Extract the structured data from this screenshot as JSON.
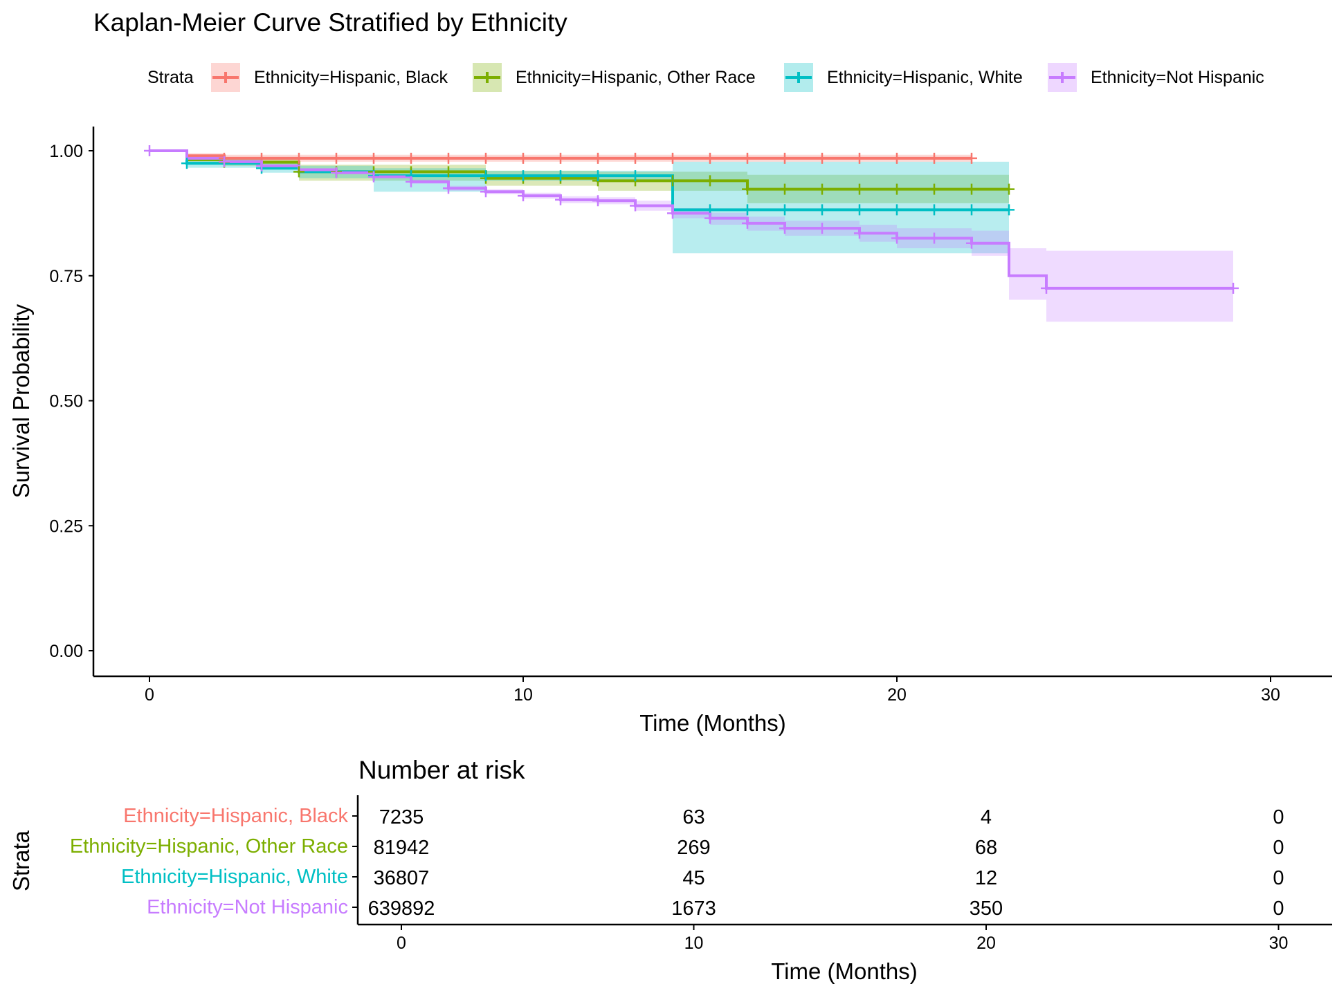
{
  "title": "Kaplan-Meier Curve Stratified by Ethnicity",
  "legend": {
    "title": "Strata",
    "position": "top",
    "items": [
      {
        "label": "Ethnicity=Hispanic, Black",
        "color": "#F8766D"
      },
      {
        "label": "Ethnicity=Hispanic, Other Race",
        "color": "#7CAE00"
      },
      {
        "label": "Ethnicity=Hispanic, White",
        "color": "#00BFC4"
      },
      {
        "label": "Ethnicity=Not Hispanic",
        "color": "#C77CFF"
      }
    ]
  },
  "risk_table": {
    "title": "Number at risk",
    "ylabel": "Strata",
    "xlabel": "Time (Months)",
    "times": [
      0,
      10,
      20,
      30
    ],
    "xticks": [
      "0",
      "10",
      "20",
      "30"
    ],
    "rows": [
      {
        "label": "Ethnicity=Hispanic, Black",
        "color": "#F8766D",
        "values": [
          "7235",
          "63",
          "4",
          "0"
        ]
      },
      {
        "label": "Ethnicity=Hispanic, Other Race",
        "color": "#7CAE00",
        "values": [
          "81942",
          "269",
          "68",
          "0"
        ]
      },
      {
        "label": "Ethnicity=Hispanic, White",
        "color": "#00BFC4",
        "values": [
          "36807",
          "45",
          "12",
          "0"
        ]
      },
      {
        "label": "Ethnicity=Not Hispanic",
        "color": "#C77CFF",
        "values": [
          "639892",
          "1673",
          "350",
          "0"
        ]
      }
    ]
  },
  "chart_data": {
    "type": "line",
    "subtype": "step",
    "title": "Kaplan-Meier Curve Stratified by Ethnicity",
    "xlabel": "Time (Months)",
    "ylabel": "Survival Probability",
    "xlim": [
      -1.5,
      31.5
    ],
    "ylim": [
      -0.05,
      1.05
    ],
    "xticks": [
      0,
      10,
      20,
      30
    ],
    "yticks": [
      0,
      0.25,
      0.5,
      0.75,
      1.0
    ],
    "ytick_labels": [
      "0.00",
      "0.25",
      "0.50",
      "0.75",
      "1.00"
    ],
    "grid": false,
    "legend_position": "top",
    "series": [
      {
        "name": "Ethnicity=Hispanic, Black",
        "color": "#F8766D",
        "steps": [
          [
            0,
            1.0
          ],
          [
            1,
            0.99
          ],
          [
            2,
            0.985
          ],
          [
            22,
            0.985
          ]
        ],
        "ci_lower": [
          [
            0,
            1.0
          ],
          [
            1,
            0.985
          ],
          [
            2,
            0.978
          ],
          [
            22,
            0.978
          ]
        ],
        "ci_upper": [
          [
            0,
            1.0
          ],
          [
            1,
            0.995
          ],
          [
            2,
            0.992
          ],
          [
            22,
            0.992
          ]
        ],
        "censor": [
          2,
          3,
          4,
          5,
          6,
          7,
          8,
          9,
          10,
          11,
          12,
          13,
          14,
          15,
          16,
          17,
          18,
          19,
          20,
          21,
          22
        ]
      },
      {
        "name": "Ethnicity=Hispanic, Other Race",
        "color": "#7CAE00",
        "steps": [
          [
            0,
            1.0
          ],
          [
            1,
            0.982
          ],
          [
            2,
            0.977
          ],
          [
            4,
            0.958
          ],
          [
            9,
            0.945
          ],
          [
            12,
            0.94
          ],
          [
            16,
            0.923
          ],
          [
            23,
            0.923
          ]
        ],
        "ci_lower": [
          [
            0,
            1.0
          ],
          [
            1,
            0.976
          ],
          [
            2,
            0.97
          ],
          [
            4,
            0.94
          ],
          [
            9,
            0.93
          ],
          [
            12,
            0.92
          ],
          [
            16,
            0.895
          ],
          [
            23,
            0.895
          ]
        ],
        "ci_upper": [
          [
            0,
            1.0
          ],
          [
            1,
            0.988
          ],
          [
            2,
            0.984
          ],
          [
            4,
            0.972
          ],
          [
            9,
            0.96
          ],
          [
            12,
            0.958
          ],
          [
            16,
            0.952
          ],
          [
            23,
            0.952
          ]
        ],
        "censor": [
          2,
          4,
          5,
          6,
          7,
          8,
          9,
          10,
          11,
          12,
          13,
          14,
          15,
          16,
          17,
          18,
          19,
          20,
          21,
          22,
          23
        ]
      },
      {
        "name": "Ethnicity=Hispanic, White",
        "color": "#00BFC4",
        "steps": [
          [
            0,
            1.0
          ],
          [
            1,
            0.975
          ],
          [
            3,
            0.965
          ],
          [
            4,
            0.958
          ],
          [
            6,
            0.95
          ],
          [
            9,
            0.95
          ],
          [
            14,
            0.882
          ],
          [
            23,
            0.882
          ]
        ],
        "ci_lower": [
          [
            0,
            1.0
          ],
          [
            1,
            0.966
          ],
          [
            3,
            0.956
          ],
          [
            4,
            0.945
          ],
          [
            6,
            0.918
          ],
          [
            9,
            0.94
          ],
          [
            14,
            0.795
          ],
          [
            23,
            0.795
          ]
        ],
        "ci_upper": [
          [
            0,
            1.0
          ],
          [
            1,
            0.984
          ],
          [
            3,
            0.975
          ],
          [
            4,
            0.97
          ],
          [
            6,
            0.965
          ],
          [
            9,
            0.96
          ],
          [
            14,
            0.978
          ],
          [
            23,
            0.978
          ]
        ],
        "censor": [
          1,
          3,
          6,
          7,
          9,
          10,
          11,
          12,
          13,
          15,
          16,
          17,
          18,
          19,
          20,
          21,
          22,
          23
        ]
      },
      {
        "name": "Ethnicity=Not Hispanic",
        "color": "#C77CFF",
        "steps": [
          [
            0,
            1.0
          ],
          [
            1,
            0.985
          ],
          [
            2,
            0.978
          ],
          [
            3,
            0.97
          ],
          [
            4,
            0.962
          ],
          [
            5,
            0.956
          ],
          [
            6,
            0.948
          ],
          [
            7,
            0.938
          ],
          [
            8,
            0.925
          ],
          [
            9,
            0.918
          ],
          [
            10,
            0.91
          ],
          [
            11,
            0.902
          ],
          [
            12,
            0.9
          ],
          [
            13,
            0.89
          ],
          [
            14,
            0.875
          ],
          [
            15,
            0.865
          ],
          [
            16,
            0.855
          ],
          [
            17,
            0.845
          ],
          [
            19,
            0.835
          ],
          [
            20,
            0.825
          ],
          [
            22,
            0.815
          ],
          [
            23,
            0.75
          ],
          [
            24,
            0.725
          ],
          [
            29,
            0.725
          ]
        ],
        "ci_lower": [
          [
            0,
            1.0
          ],
          [
            1,
            0.983
          ],
          [
            2,
            0.976
          ],
          [
            3,
            0.968
          ],
          [
            4,
            0.96
          ],
          [
            5,
            0.953
          ],
          [
            6,
            0.945
          ],
          [
            7,
            0.934
          ],
          [
            8,
            0.92
          ],
          [
            9,
            0.913
          ],
          [
            10,
            0.904
          ],
          [
            11,
            0.895
          ],
          [
            12,
            0.893
          ],
          [
            13,
            0.88
          ],
          [
            14,
            0.865
          ],
          [
            15,
            0.852
          ],
          [
            16,
            0.84
          ],
          [
            17,
            0.83
          ],
          [
            19,
            0.818
          ],
          [
            20,
            0.805
          ],
          [
            22,
            0.79
          ],
          [
            23,
            0.702
          ],
          [
            24,
            0.658
          ],
          [
            29,
            0.658
          ]
        ],
        "ci_upper": [
          [
            0,
            1.0
          ],
          [
            1,
            0.987
          ],
          [
            2,
            0.98
          ],
          [
            3,
            0.972
          ],
          [
            4,
            0.965
          ],
          [
            5,
            0.959
          ],
          [
            6,
            0.951
          ],
          [
            7,
            0.942
          ],
          [
            8,
            0.93
          ],
          [
            9,
            0.923
          ],
          [
            10,
            0.916
          ],
          [
            11,
            0.909
          ],
          [
            12,
            0.907
          ],
          [
            13,
            0.9
          ],
          [
            14,
            0.885
          ],
          [
            15,
            0.876
          ],
          [
            16,
            0.868
          ],
          [
            17,
            0.86
          ],
          [
            19,
            0.852
          ],
          [
            20,
            0.845
          ],
          [
            22,
            0.84
          ],
          [
            23,
            0.805
          ],
          [
            24,
            0.8
          ],
          [
            29,
            0.8
          ]
        ],
        "censor": [
          0,
          2,
          3,
          5,
          6,
          7,
          8,
          9,
          10,
          11,
          12,
          13,
          14,
          15,
          16,
          17,
          18,
          19,
          20,
          21,
          22,
          24,
          29
        ]
      }
    ]
  }
}
